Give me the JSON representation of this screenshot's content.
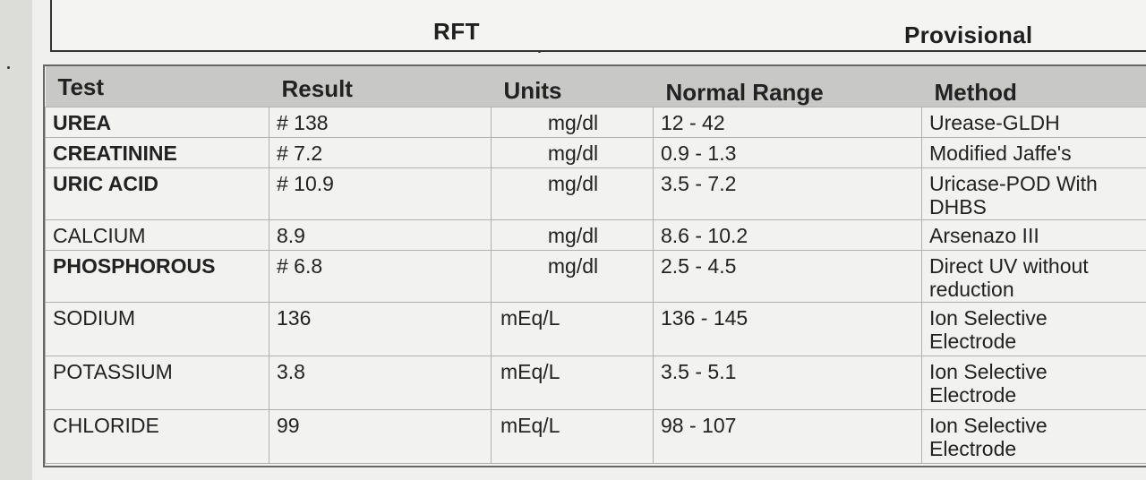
{
  "header": {
    "title": "RFT",
    "status": "Provisional"
  },
  "table": {
    "columns": [
      "Test",
      "Result",
      "Units",
      "Normal Range",
      "Method"
    ],
    "rows": [
      {
        "test": "UREA",
        "result": "# 138",
        "units": "mg/dl",
        "range": "12 - 42",
        "method": "Urease-GLDH"
      },
      {
        "test": "CREATININE",
        "result": "# 7.2",
        "units": "mg/dl",
        "range": "0.9 - 1.3",
        "method": "Modified Jaffe's"
      },
      {
        "test": "URIC ACID",
        "result": "# 10.9",
        "units": "mg/dl",
        "range": "3.5 - 7.2",
        "method": "Uricase-POD With\nDHBS"
      },
      {
        "test": "CALCIUM",
        "result": "8.9",
        "units": "mg/dl",
        "range": "8.6 - 10.2",
        "method": "Arsenazo  III"
      },
      {
        "test": "PHOSPHOROUS",
        "result": "# 6.8",
        "units": "mg/dl",
        "range": "2.5 - 4.5",
        "method": "Direct  UV  without\nreduction"
      },
      {
        "test": "SODIUM",
        "result": "136",
        "units": "mEq/L",
        "range": "136 - 145",
        "method": "Ion Selective\nElectrode"
      },
      {
        "test": "POTASSIUM",
        "result": "3.8",
        "units": "mEq/L",
        "range": "3.5 - 5.1",
        "method": "Ion Selective\nElectrode"
      },
      {
        "test": "CHLORIDE",
        "result": "99",
        "units": "mEq/L",
        "range": "98 - 107",
        "method": "Ion Selective\nElectrode"
      }
    ]
  }
}
